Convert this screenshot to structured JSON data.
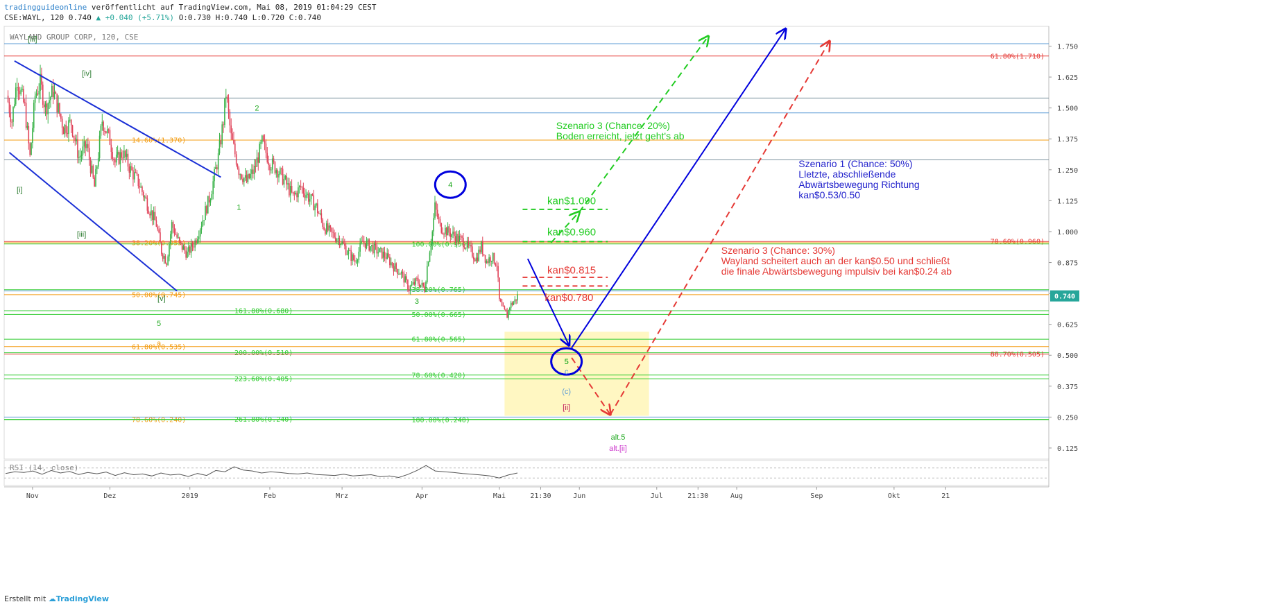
{
  "header": {
    "line1_brand": "tradingguideonline",
    "line1_rest": "veröffentlicht auf TradingView.com, Mai 08, 2019 01:04:29 CEST",
    "line2_symbol": "CSE:WAYL, 120 0.740",
    "line2_change": "▲ +0.040 (+5.71%)",
    "line2_ohlc": "O:0.730 H:0.740 L:0.720 C:0.740"
  },
  "footer": {
    "prefix": "Erstellt mit",
    "brand": "TradingView"
  },
  "chart_data": {
    "type": "candlestick",
    "title": "WAYLAND GROUP CORP, 120, CSE",
    "ylim": [
      0.08,
      1.83
    ],
    "y_ticks": [
      0.125,
      0.25,
      0.375,
      0.5,
      0.625,
      0.75,
      0.875,
      1.0,
      1.125,
      1.25,
      1.375,
      1.5,
      1.625,
      1.75
    ],
    "y_tick_labels": [
      "0.125",
      "0.250",
      "0.375",
      "0.500",
      "0.625",
      "0.750",
      "0.875",
      "1.000",
      "1.125",
      "1.250",
      "1.375",
      "1.500",
      "1.625",
      "1.750"
    ],
    "x_range": [
      "2018-10-21",
      "2019-11-30"
    ],
    "x_ticks": [
      {
        "date": "2018-11-01",
        "label": "Nov"
      },
      {
        "date": "2018-12-01",
        "label": "Dez"
      },
      {
        "date": "2019-01-01",
        "label": "2019"
      },
      {
        "date": "2019-02-01",
        "label": "Feb"
      },
      {
        "date": "2019-03-01",
        "label": "Mrz"
      },
      {
        "date": "2019-04-01",
        "label": "Apr"
      },
      {
        "date": "2019-05-01",
        "label": "Mai"
      },
      {
        "date": "2019-05-17",
        "label": "21:30"
      },
      {
        "date": "2019-06-01",
        "label": "Jun"
      },
      {
        "date": "2019-07-01",
        "label": "Jul"
      },
      {
        "date": "2019-07-17",
        "label": "21:30"
      },
      {
        "date": "2019-08-01",
        "label": "Aug"
      },
      {
        "date": "2019-09-01",
        "label": "Sep"
      },
      {
        "date": "2019-10-01",
        "label": "Okt"
      },
      {
        "date": "2019-10-21",
        "label": "21"
      }
    ],
    "last_price": {
      "value": 0.74,
      "label": "0.740",
      "color": "#26a69a"
    },
    "price_path": [
      [
        "2018-10-22",
        1.55
      ],
      [
        "2018-10-24",
        1.45
      ],
      [
        "2018-10-26",
        1.62
      ],
      [
        "2018-10-29",
        1.5
      ],
      [
        "2018-10-31",
        1.3
      ],
      [
        "2018-11-02",
        1.55
      ],
      [
        "2018-11-04",
        1.6
      ],
      [
        "2018-11-06",
        1.5
      ],
      [
        "2018-11-09",
        1.57
      ],
      [
        "2018-11-13",
        1.42
      ],
      [
        "2018-11-16",
        1.44
      ],
      [
        "2018-11-19",
        1.3
      ],
      [
        "2018-11-22",
        1.35
      ],
      [
        "2018-11-25",
        1.18
      ],
      [
        "2018-11-28",
        1.45
      ],
      [
        "2018-12-01",
        1.37
      ],
      [
        "2018-12-03",
        1.28
      ],
      [
        "2018-12-06",
        1.32
      ],
      [
        "2018-12-09",
        1.25
      ],
      [
        "2018-12-12",
        1.2
      ],
      [
        "2018-12-16",
        1.1
      ],
      [
        "2018-12-19",
        1.03
      ],
      [
        "2018-12-21",
        0.92
      ],
      [
        "2018-12-23",
        0.88
      ],
      [
        "2018-12-25",
        1.03
      ],
      [
        "2018-12-28",
        0.95
      ],
      [
        "2018-12-31",
        0.91
      ],
      [
        "2019-01-03",
        0.96
      ],
      [
        "2019-01-06",
        1.05
      ],
      [
        "2019-01-09",
        1.15
      ],
      [
        "2019-01-12",
        1.3
      ],
      [
        "2019-01-14",
        1.45
      ],
      [
        "2019-01-15",
        1.56
      ],
      [
        "2019-01-17",
        1.38
      ],
      [
        "2019-01-20",
        1.25
      ],
      [
        "2019-01-23",
        1.2
      ],
      [
        "2019-01-26",
        1.25
      ],
      [
        "2019-01-29",
        1.36
      ],
      [
        "2019-02-01",
        1.28
      ],
      [
        "2019-02-04",
        1.25
      ],
      [
        "2019-02-07",
        1.2
      ],
      [
        "2019-02-10",
        1.14
      ],
      [
        "2019-02-13",
        1.18
      ],
      [
        "2019-02-16",
        1.14
      ],
      [
        "2019-02-19",
        1.1
      ],
      [
        "2019-02-22",
        1.02
      ],
      [
        "2019-02-25",
        0.99
      ],
      [
        "2019-02-28",
        0.97
      ],
      [
        "2019-03-03",
        0.92
      ],
      [
        "2019-03-06",
        0.88
      ],
      [
        "2019-03-09",
        0.96
      ],
      [
        "2019-03-12",
        0.94
      ],
      [
        "2019-03-15",
        0.92
      ],
      [
        "2019-03-18",
        0.9
      ],
      [
        "2019-03-21",
        0.86
      ],
      [
        "2019-03-24",
        0.83
      ],
      [
        "2019-03-27",
        0.77
      ],
      [
        "2019-03-30",
        0.8
      ],
      [
        "2019-04-02",
        0.77
      ],
      [
        "2019-04-03",
        0.86
      ],
      [
        "2019-04-05",
        1.0
      ],
      [
        "2019-04-06",
        1.1
      ],
      [
        "2019-04-08",
        1.02
      ],
      [
        "2019-04-11",
        1.0
      ],
      [
        "2019-04-14",
        0.98
      ],
      [
        "2019-04-17",
        0.96
      ],
      [
        "2019-04-20",
        0.92
      ],
      [
        "2019-04-22",
        0.89
      ],
      [
        "2019-04-24",
        0.94
      ],
      [
        "2019-04-26",
        0.88
      ],
      [
        "2019-04-28",
        0.9
      ],
      [
        "2019-04-30",
        0.87
      ],
      [
        "2019-05-01",
        0.72
      ],
      [
        "2019-05-02",
        0.69
      ],
      [
        "2019-05-04",
        0.66
      ],
      [
        "2019-05-05",
        0.7
      ],
      [
        "2019-05-07",
        0.72
      ],
      [
        "2019-05-08",
        0.74
      ]
    ],
    "horizontal_levels": [
      {
        "y": 1.76,
        "color": "#5b9bd5",
        "label": ""
      },
      {
        "y": 1.71,
        "color": "#e53935",
        "label": "61.80%(1.710)",
        "label_side": "right"
      },
      {
        "y": 1.54,
        "color": "#78909c",
        "label": ""
      },
      {
        "y": 1.48,
        "color": "#5b9bd5",
        "label": ""
      },
      {
        "y": 1.37,
        "color": "#f39c12",
        "label": "14.60%(1.370)",
        "label_side": "left"
      },
      {
        "y": 1.29,
        "color": "#78909c",
        "label": ""
      },
      {
        "y": 0.96,
        "color": "#e53935",
        "label": "78.60%(0.960)",
        "label_side": "right"
      },
      {
        "y": 0.955,
        "color": "#f39c12",
        "label": "38.20%(0.955)",
        "label_side": "left"
      },
      {
        "y": 0.95,
        "color": "#33cc33",
        "label": "100.00%(0.950)",
        "label_side": "mid"
      },
      {
        "y": 0.765,
        "color": "#33cc33",
        "label": "38.20%(0.765)",
        "label_side": "mid"
      },
      {
        "y": 0.76,
        "color": "#5b9bd5",
        "label": ""
      },
      {
        "y": 0.745,
        "color": "#f39c12",
        "label": "50.00%(0.745)",
        "label_side": "left"
      },
      {
        "y": 0.68,
        "color": "#33cc33",
        "label": "161.80%(0.680)",
        "label_side": "mid2"
      },
      {
        "y": 0.665,
        "color": "#33cc33",
        "label": "50.00%(0.665)",
        "label_side": "mid"
      },
      {
        "y": 0.565,
        "color": "#33cc33",
        "label": "61.80%(0.565)",
        "label_side": "mid"
      },
      {
        "y": 0.535,
        "color": "#f39c12",
        "label": "61.80%(0.535)",
        "label_side": "left"
      },
      {
        "y": 0.51,
        "color": "#33cc33",
        "label": "200.00%(0.510)",
        "label_side": "mid2"
      },
      {
        "y": 0.505,
        "color": "#e53935",
        "label": "88.70%(0.505)",
        "label_side": "right"
      },
      {
        "y": 0.42,
        "color": "#33cc33",
        "label": "78.60%(0.420)",
        "label_side": "mid"
      },
      {
        "y": 0.405,
        "color": "#33cc33",
        "label": "223.60%(0.405)",
        "label_side": "mid2"
      },
      {
        "y": 0.25,
        "color": "#5b9bd5",
        "label": ""
      },
      {
        "y": 0.24,
        "color": "#f39c12",
        "label": "78.60%(0.240)",
        "label_side": "left"
      },
      {
        "y": 0.241,
        "color": "#33cc33",
        "label": "261.80%(0.240)",
        "label_side": "mid2"
      },
      {
        "y": 0.239,
        "color": "#33cc33",
        "label": "100.00%(0.240)",
        "label_side": "mid"
      }
    ],
    "channel_lines": [
      [
        [
          "2018-10-25",
          1.69
        ],
        [
          "2019-01-13",
          1.22
        ]
      ],
      [
        [
          "2018-10-23",
          1.32
        ],
        [
          "2018-12-27",
          0.76
        ]
      ]
    ],
    "wave_labels": [
      {
        "text": "[iii]",
        "date": "2018-11-01",
        "y": 1.78,
        "color": "#2e7d32"
      },
      {
        "text": "[iv]",
        "date": "2018-11-22",
        "y": 1.64,
        "color": "#2e7d32"
      },
      {
        "text": "[i]",
        "date": "2018-10-27",
        "y": 1.17,
        "color": "#2e7d32"
      },
      {
        "text": "[iii]",
        "date": "2018-11-20",
        "y": 0.99,
        "color": "#2e7d32"
      },
      {
        "text": "[v]",
        "date": "2018-12-21",
        "y": 0.73,
        "color": "#2e7d32"
      },
      {
        "text": "5",
        "date": "2018-12-20",
        "y": 0.63,
        "color": "#22aa22"
      },
      {
        "text": "a",
        "date": "2018-12-20",
        "y": 0.55,
        "color": "#f39c12"
      },
      {
        "text": "2",
        "date": "2019-01-27",
        "y": 1.5,
        "color": "#22aa22"
      },
      {
        "text": "1",
        "date": "2019-01-20",
        "y": 1.1,
        "color": "#22aa22"
      },
      {
        "text": "3",
        "date": "2019-03-30",
        "y": 0.72,
        "color": "#22aa22"
      },
      {
        "text": "5",
        "date": "2019-05-27",
        "y": 0.475,
        "color": "#22aa22"
      },
      {
        "text": "c",
        "date": "2019-05-27",
        "y": 0.435,
        "color": "#5b9bd5"
      },
      {
        "text": "(c)",
        "date": "2019-05-27",
        "y": 0.355,
        "color": "#5b9bd5"
      },
      {
        "text": "[ii]",
        "date": "2019-05-27",
        "y": 0.29,
        "color": "#c2185b"
      },
      {
        "text": "alt.5",
        "date": "2019-06-16",
        "y": 0.17,
        "color": "#22aa22"
      },
      {
        "text": "alt.[ii]",
        "date": "2019-06-16",
        "y": 0.125,
        "color": "#cc33cc"
      }
    ],
    "circles": [
      {
        "text": "4",
        "date": "2019-04-12",
        "y": 1.19,
        "color": "#0000dd",
        "text_color": "#22aa22"
      },
      {
        "text": "5",
        "date": "2019-05-27",
        "y": 0.475,
        "color": "#0000dd",
        "text_color": "#22aa22"
      }
    ],
    "price_annotations": [
      {
        "text": "kan$1.090",
        "date": "2019-05-29",
        "y": 1.11,
        "color": "#22cc22"
      },
      {
        "text": "kan$0.960",
        "date": "2019-05-29",
        "y": 0.985,
        "color": "#22cc22"
      },
      {
        "text": "kan$0.815",
        "date": "2019-05-29",
        "y": 0.83,
        "color": "#e53935"
      },
      {
        "text": "kan$0.780",
        "date": "2019-05-28",
        "y": 0.72,
        "color": "#e53935"
      }
    ],
    "dashed_segments": [
      {
        "color": "#22cc22",
        "pts": [
          [
            "2019-05-10",
            1.09
          ],
          [
            "2019-06-12",
            1.09
          ]
        ]
      },
      {
        "color": "#22cc22",
        "pts": [
          [
            "2019-05-10",
            0.96
          ],
          [
            "2019-06-12",
            0.96
          ]
        ]
      },
      {
        "color": "#e53935",
        "pts": [
          [
            "2019-05-10",
            0.815
          ],
          [
            "2019-06-12",
            0.815
          ]
        ]
      },
      {
        "color": "#e53935",
        "pts": [
          [
            "2019-05-10",
            0.78
          ],
          [
            "2019-06-12",
            0.78
          ]
        ]
      }
    ],
    "scenario_arrows": [
      {
        "color": "#0000dd",
        "dash": false,
        "pts": [
          [
            "2019-05-12",
            0.89
          ],
          [
            "2019-05-28",
            0.54
          ]
        ]
      },
      {
        "color": "#0000dd",
        "dash": false,
        "pts": [
          [
            "2019-05-29",
            0.53
          ],
          [
            "2019-08-20",
            1.82
          ]
        ]
      },
      {
        "color": "#22cc22",
        "dash": true,
        "pts": [
          [
            "2019-05-21",
            0.955
          ],
          [
            "2019-06-01",
            1.08
          ]
        ]
      },
      {
        "color": "#22cc22",
        "dash": true,
        "pts": [
          [
            "2019-06-01",
            1.08
          ],
          [
            "2019-07-21",
            1.79
          ]
        ]
      },
      {
        "color": "#e53935",
        "dash": true,
        "pts": [
          [
            "2019-05-29",
            0.49
          ],
          [
            "2019-06-13",
            0.26
          ]
        ]
      },
      {
        "color": "#e53935",
        "dash": true,
        "pts": [
          [
            "2019-06-13",
            0.26
          ],
          [
            "2019-09-06",
            1.77
          ]
        ]
      }
    ],
    "target_zone": {
      "x0": "2019-05-03",
      "x1": "2019-06-28",
      "y0": 0.255,
      "y1": 0.595,
      "color": "#fff7c2"
    },
    "scenario_texts": [
      {
        "lines": [
          "Szenario 3 (Chance: 20%)",
          "Boden erreicht, jetzt geht's ab"
        ],
        "date": "2019-05-23",
        "y": 1.415,
        "color": "#22cc22"
      },
      {
        "lines": [
          "Szenario 1 (Chance: 50%)",
          "Lletzte, abschließende",
          "Abwärtsbewegung Richtung",
          "kan$0.53/0.50"
        ],
        "date": "2019-08-25",
        "y": 1.26,
        "color": "#2222cc"
      },
      {
        "lines": [
          "Szenario 3 (Chance: 30%)",
          "Wayland scheitert auch an der kan$0.50 und schließt",
          "die finale Abwärtsbewegung impulsiv bei kan$0.24 ab"
        ],
        "date": "2019-07-26",
        "y": 0.91,
        "color": "#e53935"
      }
    ],
    "rsi": {
      "label": "RSI (14, close)",
      "ylim": [
        0,
        100
      ],
      "levels": [
        70,
        30
      ],
      "values": [
        48,
        55,
        52,
        58,
        45,
        60,
        50,
        56,
        44,
        52,
        47,
        54,
        40,
        51,
        43,
        46,
        38,
        50,
        42,
        45,
        36,
        48,
        40,
        60,
        55,
        75,
        62,
        58,
        50,
        55,
        52,
        48,
        46,
        50,
        44,
        42,
        40,
        45,
        38,
        41,
        43,
        35,
        38,
        32,
        44,
        60,
        80,
        58,
        55,
        52,
        48,
        45,
        42,
        38,
        30,
        42,
        50
      ]
    }
  }
}
